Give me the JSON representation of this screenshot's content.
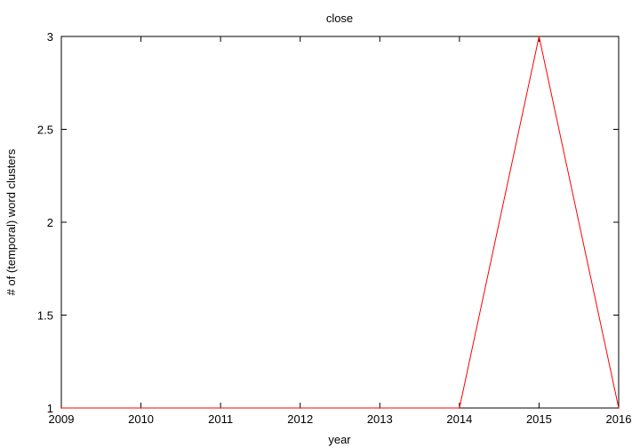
{
  "chart_data": {
    "type": "line",
    "title": "close",
    "xlabel": "year",
    "ylabel": "# of (temporal) word clusters",
    "x": [
      2009,
      2010,
      2011,
      2012,
      2013,
      2014,
      2015,
      2016
    ],
    "series": [
      {
        "values": [
          1,
          1,
          1,
          1,
          1,
          1,
          3,
          1
        ],
        "color": "#ff0000"
      }
    ],
    "xlim": [
      2009,
      2016
    ],
    "ylim": [
      1,
      3
    ],
    "xticks": [
      "2009",
      "2010",
      "2011",
      "2012",
      "2013",
      "2014",
      "2015",
      "2016"
    ],
    "yticks": [
      "1",
      "1.5",
      "2",
      "2.5",
      "3"
    ],
    "grid": false,
    "legend": "none"
  }
}
